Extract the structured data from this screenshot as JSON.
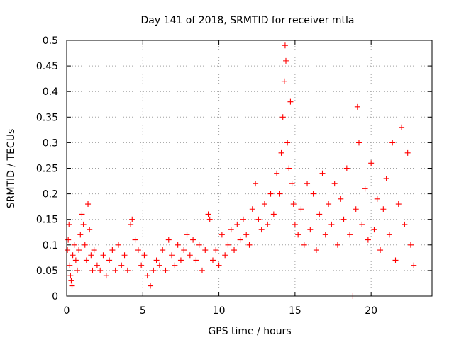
{
  "chart_data": {
    "type": "scatter",
    "title": "Day 141 of 2018, SRMTID for receiver mtla",
    "xlabel": "GPS time / hours",
    "ylabel": "SRMTID / TECUs",
    "xlim": [
      0,
      24
    ],
    "ylim": [
      0,
      0.5
    ],
    "x_ticks": [
      0,
      5,
      10,
      15,
      20
    ],
    "y_ticks": [
      0,
      0.05,
      0.1,
      0.15,
      0.2,
      0.25,
      0.3,
      0.35,
      0.4,
      0.45,
      0.5
    ],
    "x_tick_labels": [
      "0",
      "5",
      "10",
      "15",
      "20"
    ],
    "y_tick_labels": [
      "0",
      "0.05",
      "0.1",
      "0.15",
      "0.2",
      "0.25",
      "0.3",
      "0.35",
      "0.4",
      "0.45",
      "0.5"
    ],
    "grid": true,
    "marker": "+",
    "color": "#ff0000",
    "series": [
      {
        "values": [
          [
            0.05,
            0.09
          ],
          [
            0.1,
            0.11
          ],
          [
            0.15,
            0.14
          ],
          [
            0.2,
            0.06
          ],
          [
            0.25,
            0.04
          ],
          [
            0.3,
            0.03
          ],
          [
            0.35,
            0.02
          ],
          [
            0.4,
            0.08
          ],
          [
            0.5,
            0.1
          ],
          [
            0.6,
            0.07
          ],
          [
            0.7,
            0.05
          ],
          [
            0.8,
            0.09
          ],
          [
            0.9,
            0.12
          ],
          [
            1.0,
            0.16
          ],
          [
            1.1,
            0.14
          ],
          [
            1.2,
            0.1
          ],
          [
            1.3,
            0.07
          ],
          [
            1.4,
            0.18
          ],
          [
            1.5,
            0.13
          ],
          [
            1.6,
            0.08
          ],
          [
            1.7,
            0.05
          ],
          [
            1.8,
            0.09
          ],
          [
            2.0,
            0.06
          ],
          [
            2.2,
            0.05
          ],
          [
            2.4,
            0.08
          ],
          [
            2.6,
            0.04
          ],
          [
            2.8,
            0.07
          ],
          [
            3.0,
            0.09
          ],
          [
            3.2,
            0.05
          ],
          [
            3.4,
            0.1
          ],
          [
            3.6,
            0.06
          ],
          [
            3.8,
            0.08
          ],
          [
            4.0,
            0.05
          ],
          [
            4.2,
            0.14
          ],
          [
            4.3,
            0.15
          ],
          [
            4.5,
            0.11
          ],
          [
            4.7,
            0.09
          ],
          [
            4.9,
            0.06
          ],
          [
            5.1,
            0.08
          ],
          [
            5.3,
            0.04
          ],
          [
            5.5,
            0.02
          ],
          [
            5.7,
            0.05
          ],
          [
            5.9,
            0.07
          ],
          [
            6.1,
            0.06
          ],
          [
            6.3,
            0.09
          ],
          [
            6.5,
            0.05
          ],
          [
            6.7,
            0.11
          ],
          [
            6.9,
            0.08
          ],
          [
            7.1,
            0.06
          ],
          [
            7.3,
            0.1
          ],
          [
            7.5,
            0.07
          ],
          [
            7.7,
            0.09
          ],
          [
            7.9,
            0.12
          ],
          [
            8.1,
            0.08
          ],
          [
            8.3,
            0.11
          ],
          [
            8.5,
            0.07
          ],
          [
            8.7,
            0.1
          ],
          [
            8.9,
            0.05
          ],
          [
            9.1,
            0.09
          ],
          [
            9.3,
            0.16
          ],
          [
            9.4,
            0.15
          ],
          [
            9.6,
            0.07
          ],
          [
            9.8,
            0.09
          ],
          [
            10.0,
            0.06
          ],
          [
            10.2,
            0.12
          ],
          [
            10.4,
            0.08
          ],
          [
            10.6,
            0.1
          ],
          [
            10.8,
            0.13
          ],
          [
            11.0,
            0.09
          ],
          [
            11.2,
            0.14
          ],
          [
            11.4,
            0.11
          ],
          [
            11.6,
            0.15
          ],
          [
            11.8,
            0.12
          ],
          [
            12.0,
            0.1
          ],
          [
            12.2,
            0.17
          ],
          [
            12.4,
            0.22
          ],
          [
            12.6,
            0.15
          ],
          [
            12.8,
            0.13
          ],
          [
            13.0,
            0.18
          ],
          [
            13.2,
            0.14
          ],
          [
            13.4,
            0.2
          ],
          [
            13.6,
            0.16
          ],
          [
            13.8,
            0.24
          ],
          [
            14.0,
            0.2
          ],
          [
            14.1,
            0.28
          ],
          [
            14.2,
            0.35
          ],
          [
            14.3,
            0.42
          ],
          [
            14.35,
            0.49
          ],
          [
            14.4,
            0.46
          ],
          [
            14.5,
            0.3
          ],
          [
            14.6,
            0.25
          ],
          [
            14.7,
            0.38
          ],
          [
            14.8,
            0.22
          ],
          [
            14.9,
            0.18
          ],
          [
            15.0,
            0.14
          ],
          [
            15.2,
            0.12
          ],
          [
            15.4,
            0.17
          ],
          [
            15.6,
            0.1
          ],
          [
            15.8,
            0.22
          ],
          [
            16.0,
            0.13
          ],
          [
            16.2,
            0.2
          ],
          [
            16.4,
            0.09
          ],
          [
            16.6,
            0.16
          ],
          [
            16.8,
            0.24
          ],
          [
            17.0,
            0.12
          ],
          [
            17.2,
            0.18
          ],
          [
            17.4,
            0.14
          ],
          [
            17.6,
            0.22
          ],
          [
            17.8,
            0.1
          ],
          [
            18.0,
            0.19
          ],
          [
            18.2,
            0.15
          ],
          [
            18.4,
            0.25
          ],
          [
            18.6,
            0.12
          ],
          [
            18.8,
            0.0
          ],
          [
            19.0,
            0.17
          ],
          [
            19.1,
            0.37
          ],
          [
            19.2,
            0.3
          ],
          [
            19.4,
            0.14
          ],
          [
            19.6,
            0.21
          ],
          [
            19.8,
            0.11
          ],
          [
            20.0,
            0.26
          ],
          [
            20.2,
            0.13
          ],
          [
            20.4,
            0.19
          ],
          [
            20.6,
            0.09
          ],
          [
            20.8,
            0.17
          ],
          [
            21.0,
            0.23
          ],
          [
            21.2,
            0.12
          ],
          [
            21.4,
            0.3
          ],
          [
            21.6,
            0.07
          ],
          [
            21.8,
            0.18
          ],
          [
            22.0,
            0.33
          ],
          [
            22.2,
            0.14
          ],
          [
            22.4,
            0.28
          ],
          [
            22.6,
            0.1
          ],
          [
            22.8,
            0.06
          ]
        ]
      }
    ]
  }
}
